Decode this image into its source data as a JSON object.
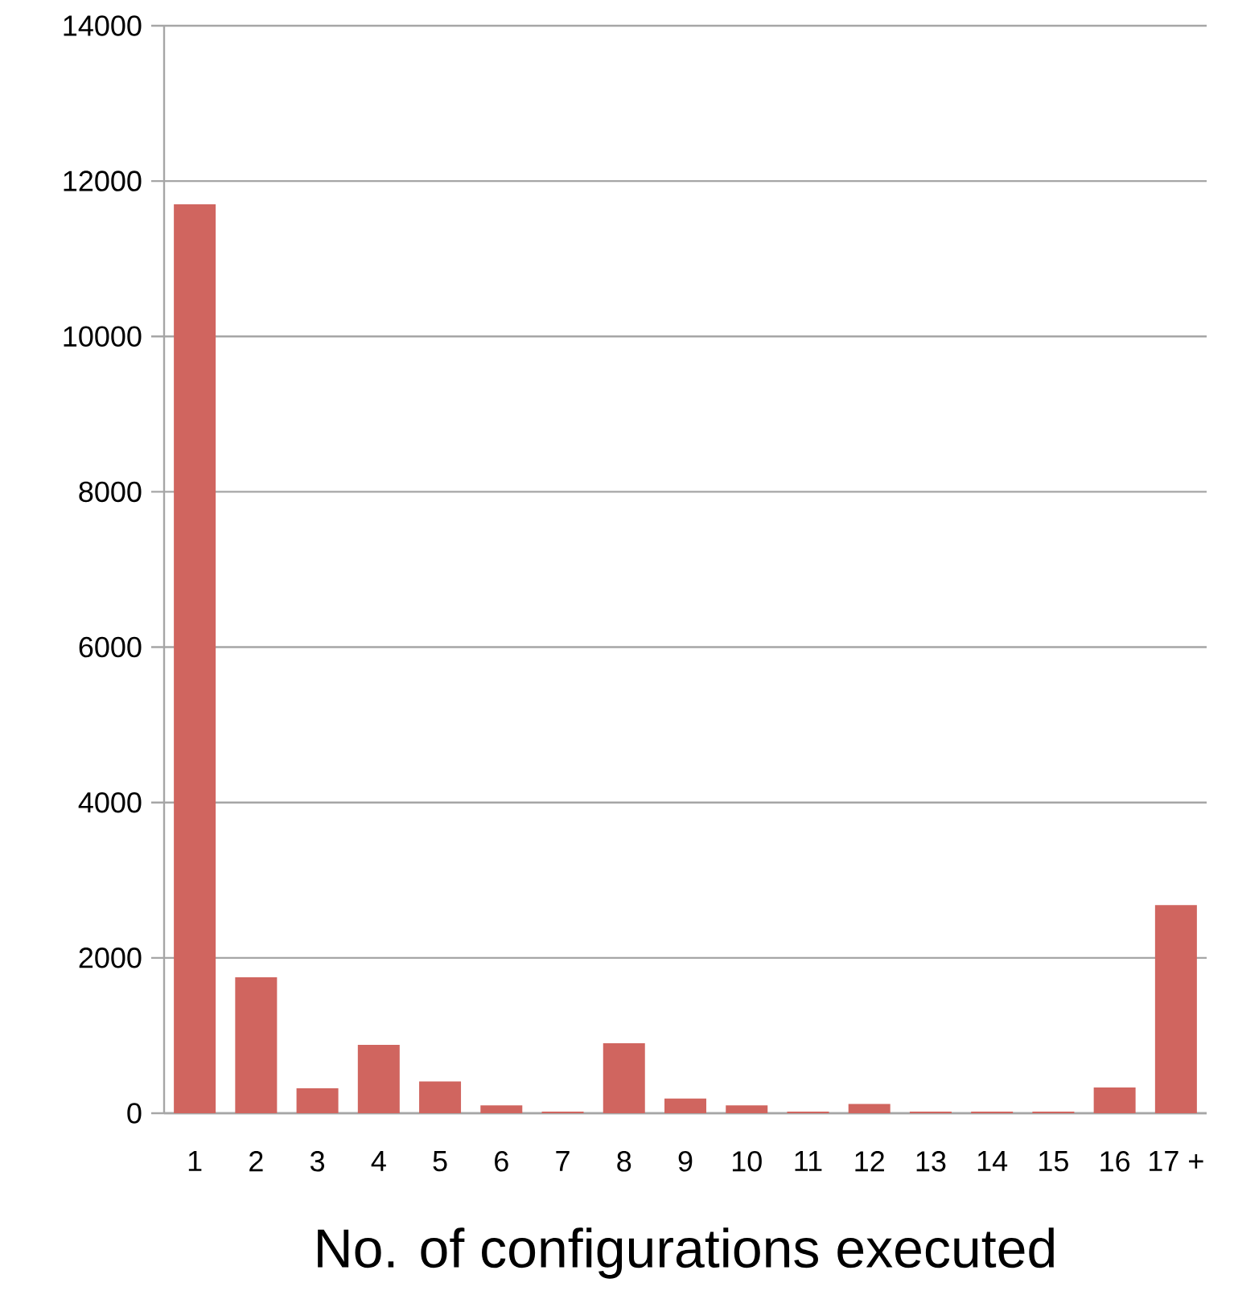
{
  "chart_data": {
    "type": "bar",
    "xlabel": "No. of configurations executed",
    "categories": [
      "1",
      "2",
      "3",
      "4",
      "5",
      "6",
      "7",
      "8",
      "9",
      "10",
      "11",
      "12",
      "13",
      "14",
      "15",
      "16",
      "17 +"
    ],
    "values": [
      11700,
      1750,
      320,
      880,
      410,
      100,
      20,
      900,
      190,
      100,
      20,
      120,
      20,
      20,
      20,
      330,
      2680
    ],
    "color": "#d0655f",
    "ylim": [
      0,
      14000
    ],
    "yticks": [
      0,
      2000,
      4000,
      6000,
      8000,
      10000,
      12000,
      14000
    ],
    "grid": "y"
  }
}
